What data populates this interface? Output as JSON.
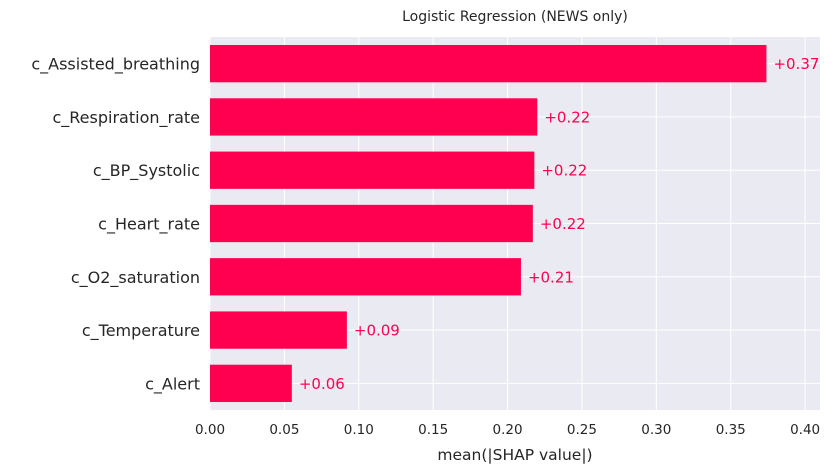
{
  "chart_data": {
    "type": "bar",
    "orientation": "horizontal",
    "title": "Logistic Regression (NEWS only)",
    "xlabel": "mean(|SHAP value|)",
    "categories": [
      "c_Assisted_breathing",
      "c_Respiration_rate",
      "c_BP_Systolic",
      "c_Heart_rate",
      "c_O2_saturation",
      "c_Temperature",
      "c_Alert"
    ],
    "values": [
      0.374,
      0.22,
      0.218,
      0.217,
      0.209,
      0.092,
      0.055
    ],
    "data_labels": [
      "+0.37",
      "+0.22",
      "+0.22",
      "+0.22",
      "+0.21",
      "+0.09",
      "+0.06"
    ],
    "xticks": [
      "0.00",
      "0.05",
      "0.10",
      "0.15",
      "0.20",
      "0.25",
      "0.30",
      "0.35",
      "0.40"
    ],
    "tick_values": [
      0,
      0.05,
      0.1,
      0.15,
      0.2,
      0.25,
      0.3,
      0.35,
      0.4
    ],
    "xlim": [
      0,
      0.41
    ],
    "grid": true,
    "colors": {
      "bar": "#ff0051",
      "background": "#eaeaf2",
      "grid": "#ffffff",
      "label": "#ff0051"
    }
  }
}
